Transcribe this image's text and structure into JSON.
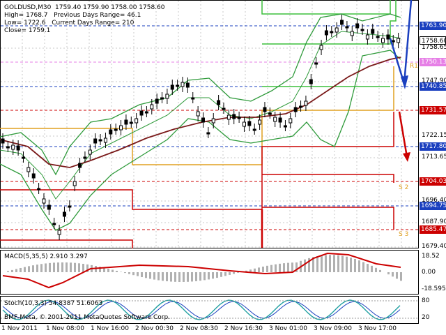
{
  "header": {
    "symbol": "GOLDUSD,M30",
    "ohlc": "1759.40 1759.90 1758.00 1758.60",
    "high_label": "High= 1768.7",
    "prev_range_label": "Previous Days Range= 46.1",
    "low_label": "Low= 1722.6",
    "current_range_label": "Current Days Range= 210",
    "close_label": "Close= 1759.1"
  },
  "price_axis": {
    "ticks": [
      "1758.65",
      "1747.90",
      "1722.15",
      "1713.65",
      "1696.40",
      "1687.90",
      "1679.40"
    ]
  },
  "price_boxes": [
    {
      "label": "1763.90",
      "bg": "#1a3fbf",
      "fg": "#ffffff"
    },
    {
      "label": "1758.60",
      "bg": "#ffffff",
      "fg": "#000000"
    },
    {
      "label": "1750.13",
      "bg": "#e67fe6",
      "fg": "#ffffff"
    },
    {
      "label": "1740.85",
      "bg": "#1a3fbf",
      "fg": "#ffffff"
    },
    {
      "label": "1731.57",
      "bg": "#cc0000",
      "fg": "#ffffff"
    },
    {
      "label": "1717.80",
      "bg": "#1a3fbf",
      "fg": "#ffffff"
    },
    {
      "label": "1704.03",
      "bg": "#cc0000",
      "fg": "#ffffff"
    },
    {
      "label": "1694.75",
      "bg": "#1a3fbf",
      "fg": "#ffffff"
    },
    {
      "label": "1685.47",
      "bg": "#cc0000",
      "fg": "#ffffff"
    }
  ],
  "level_labels": [
    "R1",
    "S 2",
    "S 3"
  ],
  "macd": {
    "label": "MACD(5,35,5) 2.910 3.297",
    "ticks": [
      "18.52",
      "0.00",
      "-18.595"
    ]
  },
  "stoch": {
    "label": "Stoch(10,3,3) 54.8387 51.6063",
    "ticks": [
      "80",
      "20"
    ]
  },
  "time_axis": [
    "1 Nov 2011",
    "1 Nov 08:00",
    "1 Nov 16:00",
    "2 Nov 00:30",
    "2 Nov 08:30",
    "2 Nov 16:30",
    "3 Nov 01:00",
    "3 Nov 09:00",
    "3 Nov 17:00"
  ],
  "footer": "BMF-Meta, © 2001-2011 MetaQuotes Software Corp.",
  "colors": {
    "candle": "#000000",
    "bollinger": "#2e9a3a",
    "ma": "#7a1a1a",
    "pivot_green": "#3cbf3c",
    "pivot_orange": "#e0a020",
    "pivot_red": "#cc0000",
    "macd_line": "#cc0000",
    "macd_hist": "#b0b0b0",
    "stoch_main": "#20a0a0",
    "stoch_signal": "#1a3fbf",
    "arrow_blue": "#1a3fbf",
    "arrow_red": "#cc0000"
  }
}
